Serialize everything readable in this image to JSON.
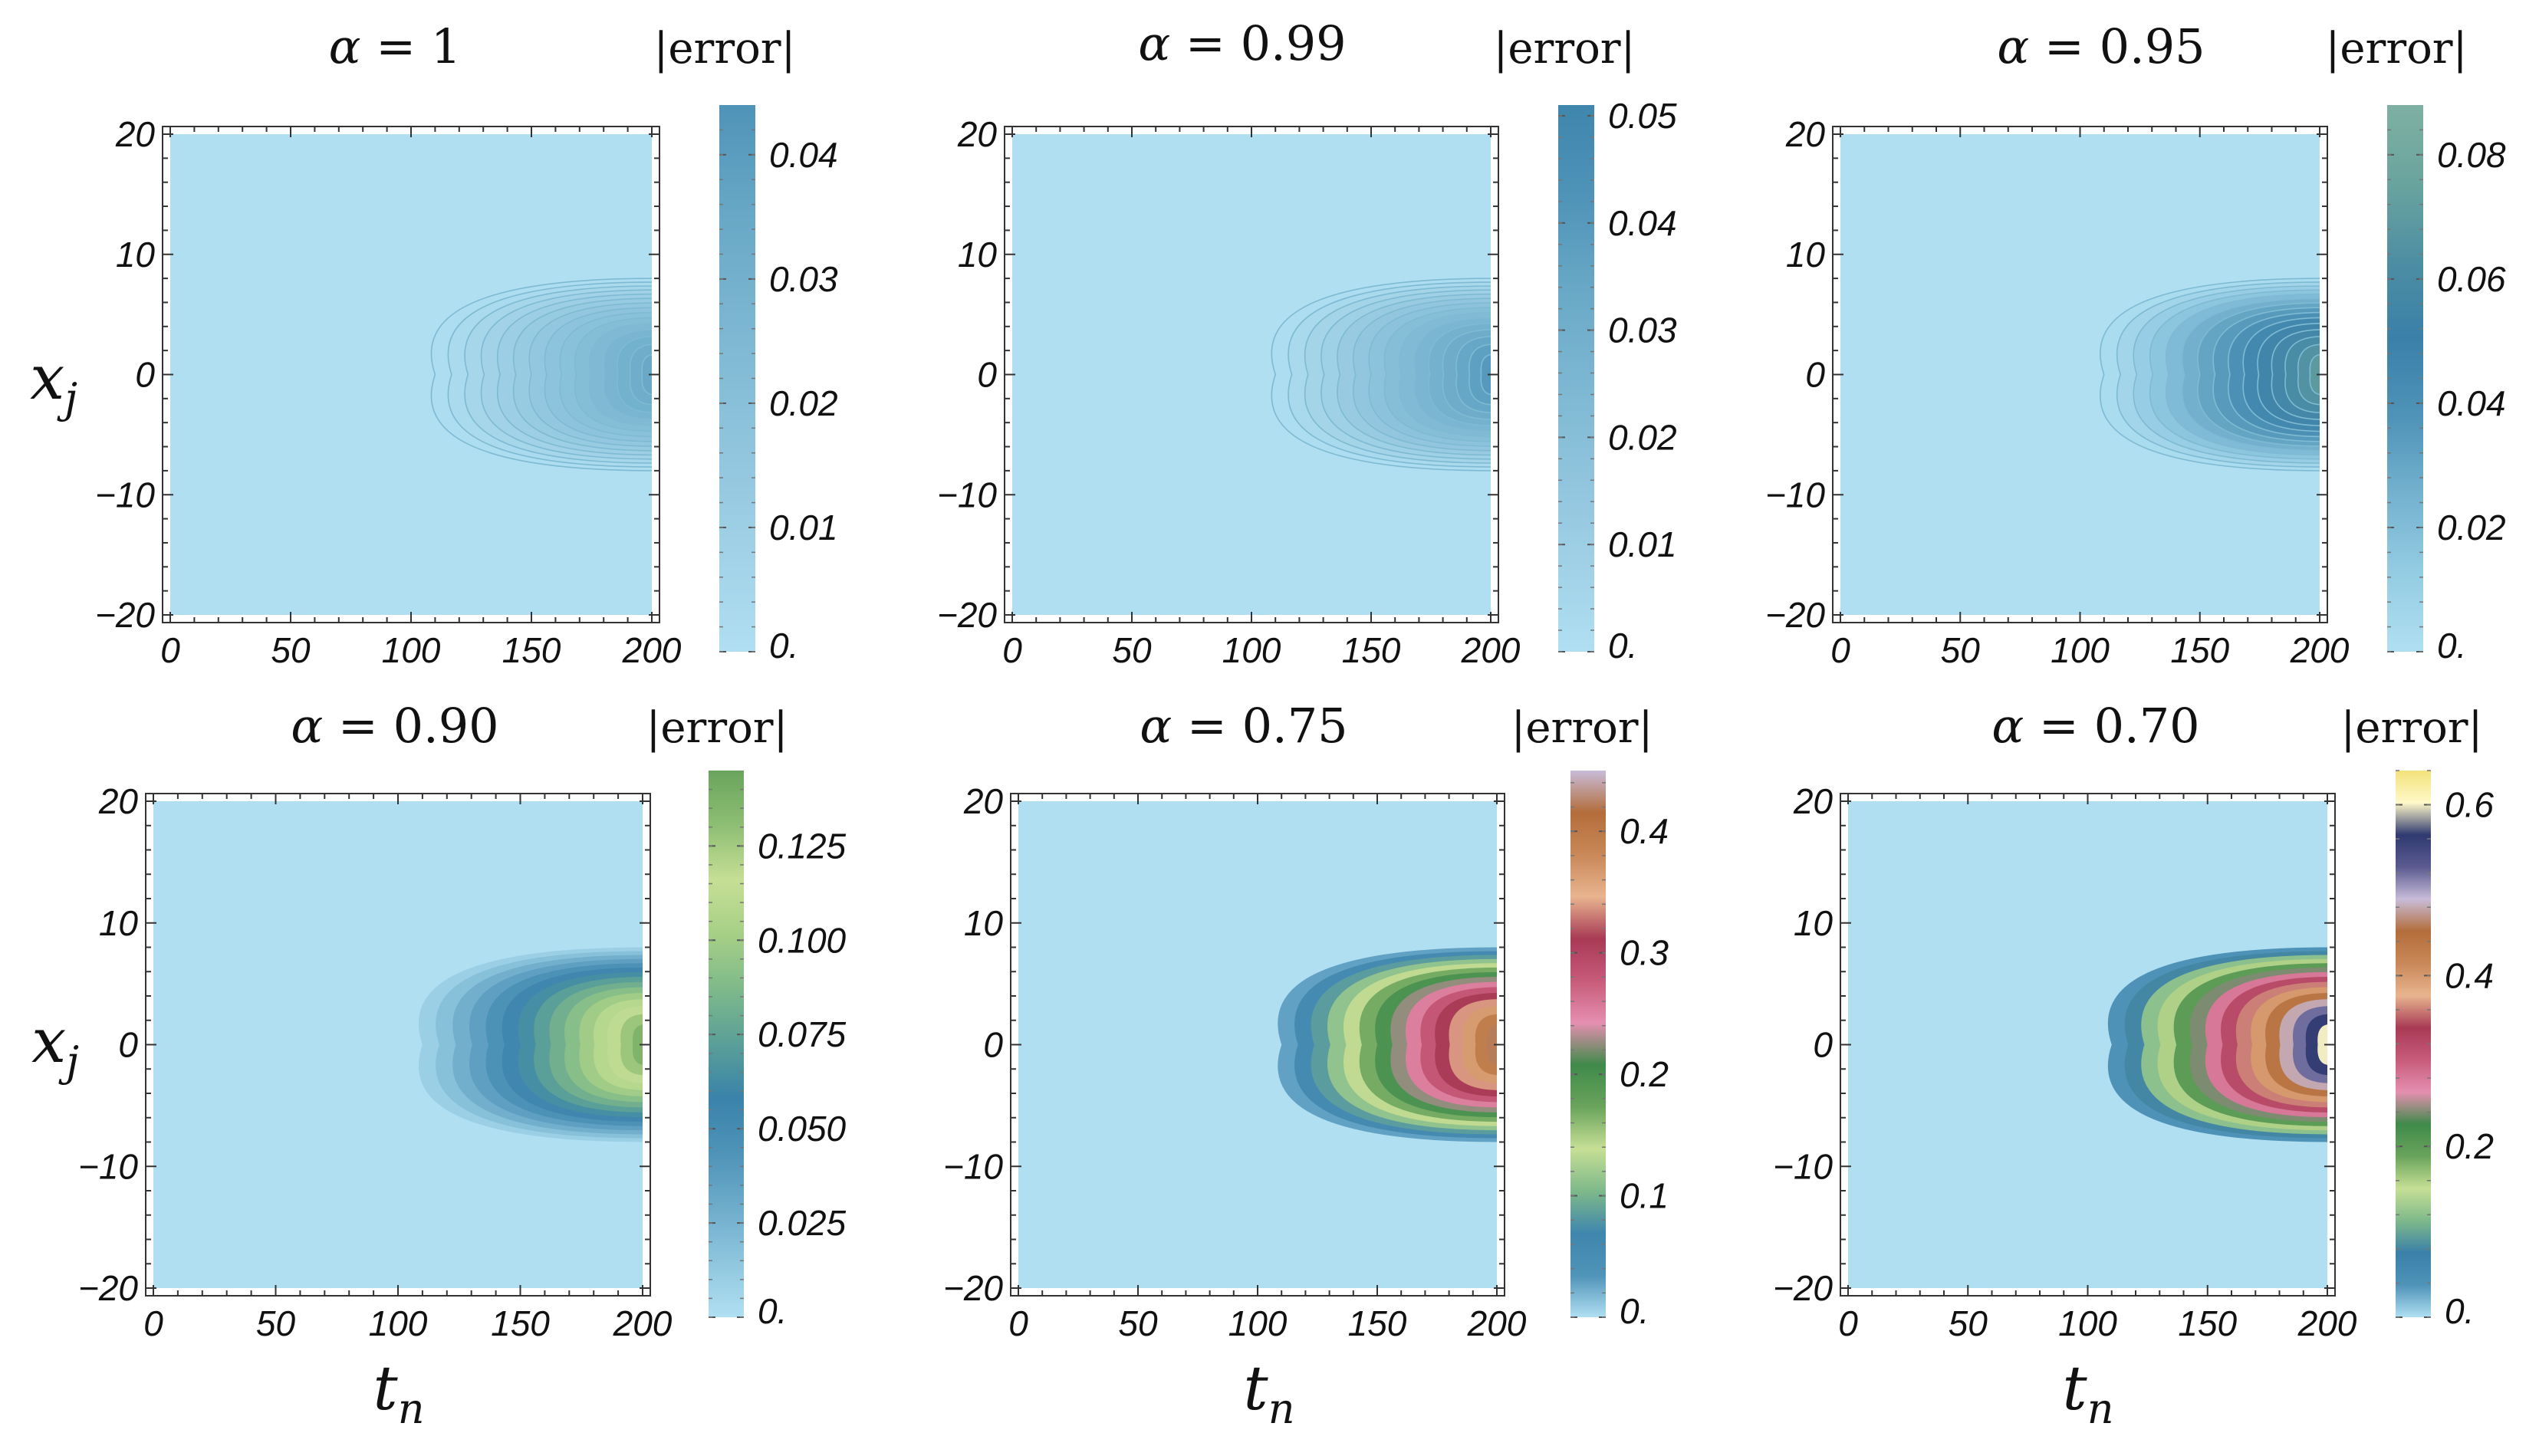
{
  "figure": {
    "colors": {
      "background": "#b0dff2",
      "frame": "#333333",
      "white": "#ffffff",
      "contour_line": "#7fbad3"
    }
  },
  "chart_data": [
    {
      "type": "heatmap",
      "title": "α = 1",
      "title_parts": [
        "α",
        " = 1"
      ],
      "colorbar_title": "|error|",
      "xlabel": "",
      "ylabel": "x_j",
      "xlim": [
        0,
        200
      ],
      "ylim": [
        -20,
        20
      ],
      "xticks": [
        0,
        50,
        100,
        150,
        200
      ],
      "yticks": [
        -20,
        -10,
        0,
        10,
        20
      ],
      "x_tick_labels": [
        "0",
        "50",
        "100",
        "150",
        "200"
      ],
      "y_tick_labels": [
        "−20",
        "−10",
        "0",
        "10",
        "20"
      ],
      "colorbar_range": [
        0,
        0.044
      ],
      "colorbar_ticks": [
        0,
        0.01,
        0.02,
        0.03,
        0.04
      ],
      "colorbar_tick_labels": [
        "0.",
        "0.01",
        "0.02",
        "0.03",
        "0.04"
      ],
      "colorbar_colors": [
        "#b0dff2",
        "#9fd0e6",
        "#8ec3dc",
        "#7bb6d1",
        "#68a8c6",
        "#4f93b8"
      ],
      "contour_levels": 15,
      "contour_fill": false,
      "contour_extent_x": 110,
      "contour_extent_y": 8,
      "max_error": 0.043
    },
    {
      "type": "heatmap",
      "title": "α = 0.99",
      "title_parts": [
        "α",
        " = 0.99"
      ],
      "colorbar_title": "|error|",
      "xlabel": "",
      "ylabel": "",
      "xlim": [
        0,
        200
      ],
      "ylim": [
        -20,
        20
      ],
      "xticks": [
        0,
        50,
        100,
        150,
        200
      ],
      "yticks": [
        -20,
        -10,
        0,
        10,
        20
      ],
      "x_tick_labels": [
        "0",
        "50",
        "100",
        "150",
        "200"
      ],
      "y_tick_labels": [
        "−20",
        "−10",
        "0",
        "10",
        "20"
      ],
      "colorbar_range": [
        0,
        0.051
      ],
      "colorbar_ticks": [
        0,
        0.01,
        0.02,
        0.03,
        0.04,
        0.05
      ],
      "colorbar_tick_labels": [
        "0.",
        "0.01",
        "0.02",
        "0.03",
        "0.04",
        "0.05"
      ],
      "colorbar_colors": [
        "#b0dff2",
        "#9fd0e6",
        "#8ec3dc",
        "#7bb6d1",
        "#68a8c6",
        "#4f93b8",
        "#3f86ad"
      ],
      "contour_levels": 15,
      "contour_fill": false,
      "contour_extent_x": 110,
      "contour_extent_y": 8,
      "max_error": 0.05
    },
    {
      "type": "heatmap",
      "title": "α = 0.95",
      "title_parts": [
        "α",
        " = 0.95"
      ],
      "colorbar_title": "|error|",
      "xlabel": "",
      "ylabel": "",
      "xlim": [
        0,
        200
      ],
      "ylim": [
        -20,
        20
      ],
      "xticks": [
        0,
        50,
        100,
        150,
        200
      ],
      "yticks": [
        -20,
        -10,
        0,
        10,
        20
      ],
      "x_tick_labels": [
        "0",
        "50",
        "100",
        "150",
        "200"
      ],
      "y_tick_labels": [
        "−20",
        "−10",
        "0",
        "10",
        "20"
      ],
      "colorbar_range": [
        0,
        0.088
      ],
      "colorbar_ticks": [
        0,
        0.02,
        0.04,
        0.06,
        0.08
      ],
      "colorbar_tick_labels": [
        "0.",
        "0.02",
        "0.04",
        "0.06",
        "0.08"
      ],
      "colorbar_colors": [
        "#b0dff2",
        "#94cce3",
        "#74b2cf",
        "#4f93b8",
        "#3a80a8",
        "#4d8ea3",
        "#6aa49e",
        "#7eb0a2"
      ],
      "contour_levels": 15,
      "contour_fill": false,
      "contour_extent_x": 110,
      "contour_extent_y": 8,
      "max_error": 0.087
    },
    {
      "type": "heatmap",
      "title": "α = 0.90",
      "title_parts": [
        "α",
        " = 0.90"
      ],
      "colorbar_title": "|error|",
      "xlabel": "t_n",
      "ylabel": "x_j",
      "xlim": [
        0,
        200
      ],
      "ylim": [
        -20,
        20
      ],
      "xticks": [
        0,
        50,
        100,
        150,
        200
      ],
      "yticks": [
        -20,
        -10,
        0,
        10,
        20
      ],
      "x_tick_labels": [
        "0",
        "50",
        "100",
        "150",
        "200"
      ],
      "y_tick_labels": [
        "−20",
        "−10",
        "0",
        "10",
        "20"
      ],
      "colorbar_range": [
        0,
        0.145
      ],
      "colorbar_ticks": [
        0,
        0.025,
        0.05,
        0.075,
        0.1,
        0.125
      ],
      "colorbar_tick_labels": [
        "0.",
        "0.025",
        "0.050",
        "0.075",
        "0.100",
        "0.125"
      ],
      "colorbar_colors": [
        "#b0dff2",
        "#8fc6de",
        "#6eaccb",
        "#4f93b8",
        "#3a83aa",
        "#5a9f98",
        "#7eb98a",
        "#a6cf86",
        "#c6df95",
        "#8dbe74",
        "#6aa45c"
      ],
      "contour_levels": 15,
      "contour_fill": true,
      "contour_extent_x": 110,
      "contour_extent_y": 8,
      "max_error": 0.145
    },
    {
      "type": "heatmap",
      "title": "α = 0.75",
      "title_parts": [
        "α",
        " = 0.75"
      ],
      "colorbar_title": "|error|",
      "xlabel": "t_n",
      "ylabel": "",
      "xlim": [
        0,
        200
      ],
      "ylim": [
        -20,
        20
      ],
      "xticks": [
        0,
        50,
        100,
        150,
        200
      ],
      "yticks": [
        -20,
        -10,
        0,
        10,
        20
      ],
      "x_tick_labels": [
        "0",
        "50",
        "100",
        "150",
        "200"
      ],
      "y_tick_labels": [
        "−20",
        "−10",
        "0",
        "10",
        "20"
      ],
      "colorbar_range": [
        0,
        0.45
      ],
      "colorbar_ticks": [
        0,
        0.1,
        0.2,
        0.3,
        0.4
      ],
      "colorbar_tick_labels": [
        "0.",
        "0.1",
        "0.2",
        "0.3",
        "0.4"
      ],
      "colorbar_colors": [
        "#b0dff2",
        "#4f93b8",
        "#3f86ad",
        "#7eb98a",
        "#c6df95",
        "#6aa45c",
        "#3f8a4a",
        "#e58fb0",
        "#c75b7a",
        "#a83a55",
        "#e8b48f",
        "#c98858",
        "#b36d3b",
        "#c8bcd8"
      ],
      "contour_levels": 15,
      "contour_fill": true,
      "contour_extent_x": 110,
      "contour_extent_y": 8,
      "max_error": 0.45
    },
    {
      "type": "heatmap",
      "title": "α = 0.70",
      "title_parts": [
        "α",
        " = 0.70"
      ],
      "colorbar_title": "|error|",
      "xlabel": "t_n",
      "ylabel": "",
      "xlim": [
        0,
        200
      ],
      "ylim": [
        -20,
        20
      ],
      "xticks": [
        0,
        50,
        100,
        150,
        200
      ],
      "yticks": [
        -20,
        -10,
        0,
        10,
        20
      ],
      "x_tick_labels": [
        "0",
        "50",
        "100",
        "150",
        "200"
      ],
      "y_tick_labels": [
        "−20",
        "−10",
        "0",
        "10",
        "20"
      ],
      "colorbar_range": [
        0,
        0.64
      ],
      "colorbar_ticks": [
        0,
        0.2,
        0.4,
        0.6
      ],
      "colorbar_tick_labels": [
        "0.",
        "0.2",
        "0.4",
        "0.6"
      ],
      "colorbar_colors": [
        "#b0dff2",
        "#4f93b8",
        "#3a80a8",
        "#7eb98a",
        "#c6df95",
        "#6aa45c",
        "#3f8a4a",
        "#e58fb0",
        "#c75b7a",
        "#a83a55",
        "#e8b48f",
        "#c98858",
        "#b36d3b",
        "#c8bcd8",
        "#5a5a90",
        "#2f3a70",
        "#fff8c8",
        "#f3e27a"
      ],
      "contour_levels": 15,
      "contour_fill": true,
      "contour_extent_x": 110,
      "contour_extent_y": 8,
      "max_error": 0.64
    }
  ]
}
